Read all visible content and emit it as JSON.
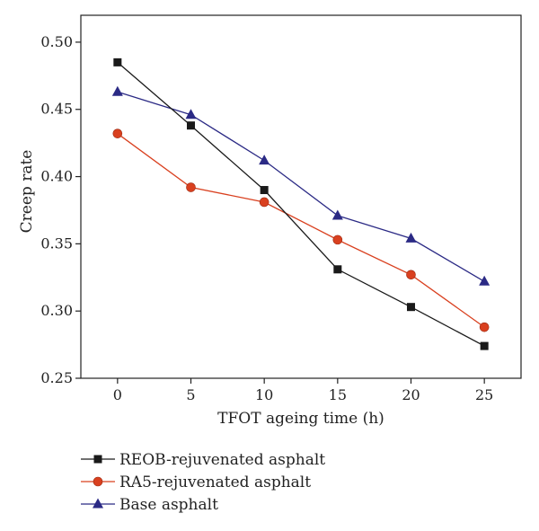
{
  "chart_data": {
    "type": "line",
    "title": "",
    "xlabel": "TFOT ageing time (h)",
    "ylabel": "Creep rate",
    "x": [
      0,
      5,
      10,
      15,
      20,
      25
    ],
    "xlim": [
      -2.5,
      27.5
    ],
    "ylim": [
      0.25,
      0.52
    ],
    "xticks": [
      0,
      5,
      10,
      15,
      20,
      25
    ],
    "yticks": [
      0.25,
      0.3,
      0.35,
      0.4,
      0.45,
      0.5
    ],
    "ytick_labels": [
      "0.25",
      "0.30",
      "0.35",
      "0.40",
      "0.45",
      "0.50"
    ],
    "grid": false,
    "legend_position": "below",
    "series": [
      {
        "name": "REOB-rejuvenated asphalt",
        "marker": "square",
        "color": "#1a1a1a",
        "marker_color": "#1a1a1a",
        "values": [
          0.485,
          0.438,
          0.39,
          0.331,
          0.303,
          0.274
        ]
      },
      {
        "name": "RA5-rejuvenated asphalt",
        "marker": "circle",
        "color": "#d9401f",
        "marker_color": "#d9401f",
        "values": [
          0.432,
          0.392,
          0.381,
          0.353,
          0.327,
          0.288
        ]
      },
      {
        "name": "Base asphalt",
        "marker": "triangle",
        "color": "#2b2a85",
        "marker_color": "#2b2a85",
        "values": [
          0.463,
          0.446,
          0.412,
          0.371,
          0.354,
          0.322
        ]
      }
    ]
  }
}
